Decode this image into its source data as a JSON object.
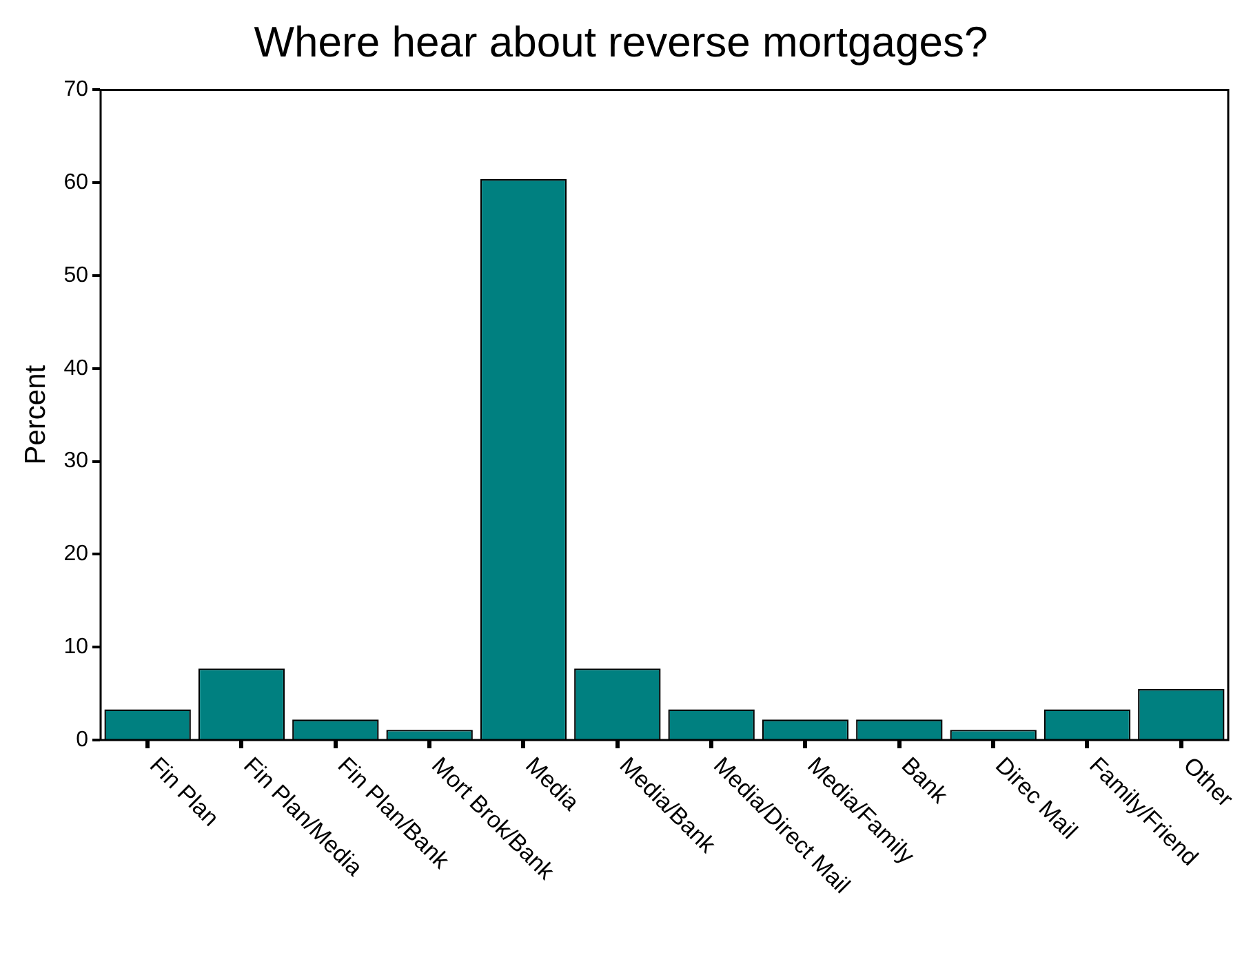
{
  "chart_data": {
    "type": "bar",
    "title": "Where hear about reverse mortgages?",
    "ylabel": "Percent",
    "categories": [
      "Fin Plan",
      "Fin Plan/Media",
      "Fin Plan/Bank",
      "Mort Brok/Bank",
      "Media",
      "Media/Bank",
      "Media/Direct Mail",
      "Media/Family",
      "Bank",
      "Direc Mail",
      "Family/Friend",
      "Other"
    ],
    "values": [
      3.3,
      7.7,
      2.2,
      1.1,
      60.4,
      7.7,
      3.3,
      2.2,
      2.2,
      1.1,
      3.3,
      5.5
    ],
    "color": "#008080",
    "ylim": [
      0,
      70
    ],
    "yticks": [
      0,
      10,
      20,
      30,
      40,
      50,
      60,
      70
    ],
    "grid": false,
    "legend": false
  }
}
